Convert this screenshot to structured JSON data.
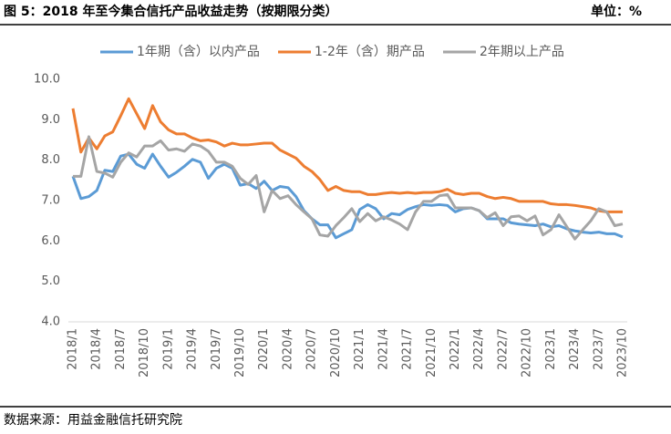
{
  "chart_data": {
    "type": "line",
    "title": "图 5：2018 年至今集合信托产品收益走势（按期限分类）",
    "unit": "单位：%",
    "source": "数据来源：用益金融信托研究院",
    "categories": [
      "2018/1",
      null,
      null,
      "2018/4",
      null,
      null,
      "2018/7",
      null,
      null,
      "2018/10",
      null,
      null,
      "2019/1",
      null,
      null,
      "2019/4",
      null,
      null,
      "2019/7",
      null,
      null,
      "2019/10",
      null,
      null,
      "2020/1",
      null,
      null,
      "2020/4",
      null,
      null,
      "2020/7",
      null,
      null,
      "2020/10",
      null,
      null,
      "2021/1",
      null,
      null,
      "2021/4",
      null,
      null,
      "2021/7",
      null,
      null,
      "2021/10",
      null,
      null,
      "2022/1",
      null,
      null,
      "2022/4",
      null,
      null,
      "2022/7",
      null,
      null,
      "2022/10",
      null,
      null,
      "2023/1",
      null,
      null,
      "2023/4",
      null,
      null,
      "2023/7",
      null,
      null,
      "2023/10"
    ],
    "series": [
      {
        "name": "1年期（含）以内产品",
        "color": "#5b9bd5",
        "values": [
          7.6,
          7.05,
          7.1,
          7.25,
          7.75,
          7.72,
          8.1,
          8.15,
          7.9,
          7.8,
          8.15,
          7.85,
          7.58,
          7.7,
          7.85,
          8.02,
          7.95,
          7.55,
          7.8,
          7.9,
          7.8,
          7.38,
          7.42,
          7.3,
          7.48,
          7.25,
          7.35,
          7.32,
          7.1,
          6.75,
          6.55,
          6.4,
          6.4,
          6.08,
          6.18,
          6.28,
          6.78,
          6.9,
          6.8,
          6.55,
          6.68,
          6.65,
          6.78,
          6.85,
          6.9,
          6.88,
          6.9,
          6.88,
          6.72,
          6.8,
          6.82,
          6.75,
          6.55,
          6.55,
          6.55,
          6.45,
          6.42,
          6.4,
          6.38,
          6.42,
          6.35,
          6.38,
          6.3,
          6.25,
          6.22,
          6.2,
          6.22,
          6.18,
          6.18,
          6.1
        ]
      },
      {
        "name": "1-2年（含）期产品",
        "color": "#ed7d31",
        "values": [
          9.28,
          8.2,
          8.55,
          8.28,
          8.6,
          8.7,
          9.1,
          9.52,
          9.15,
          8.78,
          9.35,
          8.95,
          8.75,
          8.65,
          8.65,
          8.55,
          8.48,
          8.5,
          8.45,
          8.35,
          8.42,
          8.38,
          8.38,
          8.4,
          8.42,
          8.42,
          8.25,
          8.15,
          8.05,
          7.85,
          7.72,
          7.52,
          7.25,
          7.35,
          7.25,
          7.22,
          7.22,
          7.15,
          7.15,
          7.18,
          7.2,
          7.18,
          7.2,
          7.18,
          7.2,
          7.2,
          7.22,
          7.28,
          7.18,
          7.15,
          7.18,
          7.18,
          7.1,
          7.05,
          7.08,
          7.05,
          6.98,
          6.98,
          6.98,
          6.98,
          6.92,
          6.9,
          6.9,
          6.88,
          6.85,
          6.82,
          6.75,
          6.72,
          6.72,
          6.72
        ]
      },
      {
        "name": "2年期以上产品",
        "color": "#a5a5a5",
        "values": [
          7.6,
          7.6,
          8.58,
          7.72,
          7.68,
          7.58,
          7.95,
          8.18,
          8.08,
          8.35,
          8.35,
          8.48,
          8.25,
          8.28,
          8.22,
          8.4,
          8.35,
          8.22,
          7.95,
          7.95,
          7.85,
          7.55,
          7.4,
          7.62,
          6.72,
          7.25,
          7.05,
          7.12,
          6.9,
          6.72,
          6.55,
          6.15,
          6.12,
          6.38,
          6.58,
          6.8,
          6.48,
          6.68,
          6.5,
          6.6,
          6.52,
          6.42,
          6.28,
          6.72,
          6.98,
          6.98,
          7.12,
          7.15,
          6.82,
          6.82,
          6.82,
          6.75,
          6.58,
          6.7,
          6.38,
          6.6,
          6.62,
          6.5,
          6.62,
          6.15,
          6.28,
          6.65,
          6.35,
          6.05,
          6.28,
          6.5,
          6.8,
          6.72,
          6.38,
          6.42
        ]
      }
    ],
    "ylim": [
      4,
      10
    ],
    "yticks": [
      {
        "value": 4,
        "label": "4.0"
      },
      {
        "value": 5,
        "label": "5.0"
      },
      {
        "value": 6,
        "label": "6.0"
      },
      {
        "value": 7,
        "label": "7.0"
      },
      {
        "value": 8,
        "label": "8.0"
      },
      {
        "value": 9,
        "label": "9.0"
      },
      {
        "value": 10,
        "label": "10.0"
      }
    ],
    "grid": false
  }
}
